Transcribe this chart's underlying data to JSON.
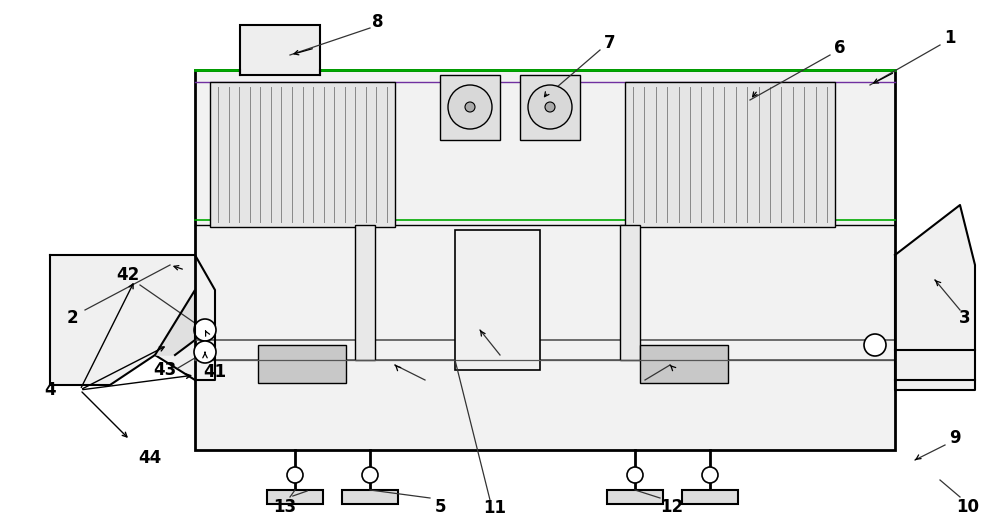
{
  "bg_color": "#ffffff",
  "lc": "#000000",
  "purple_line": "#7030a0",
  "green_line": "#00aa00",
  "figsize": [
    10.0,
    5.24
  ],
  "dpi": 100,
  "label_fontsize": 12,
  "label_fontweight": "bold"
}
